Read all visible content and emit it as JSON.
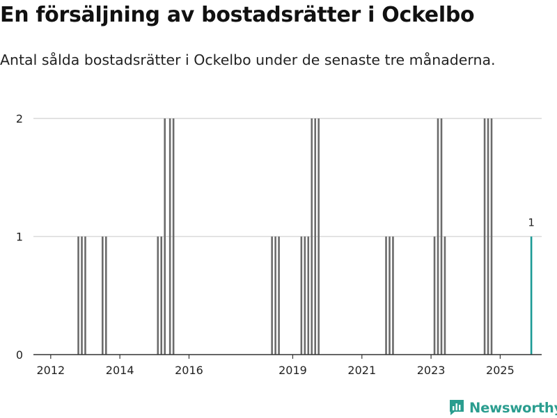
{
  "title": "En försäljning av bostadsrätter i Ockelbo",
  "subtitle": "Antal sålda bostadsrätter i Ockelbo under de senaste tre månaderna.",
  "brand": {
    "name": "Newsworthy",
    "color": "#2a9d8f"
  },
  "colors": {
    "bar": "#6b6b6b",
    "highlight": "#1a9a95",
    "grid": "#d9d9d9",
    "axis": "#333333"
  },
  "chart_data": {
    "type": "bar",
    "ylim": [
      0,
      2
    ],
    "yticks": [
      0,
      1,
      2
    ],
    "xlim": [
      2011.5,
      2026.2
    ],
    "xticks": [
      2012,
      2014,
      2016,
      2019,
      2021,
      2023,
      2025
    ],
    "grid": true,
    "series": [
      {
        "points": [
          {
            "x": 2012.8,
            "y": 1
          },
          {
            "x": 2012.9,
            "y": 1
          },
          {
            "x": 2013.0,
            "y": 1
          },
          {
            "x": 2013.5,
            "y": 1
          },
          {
            "x": 2013.6,
            "y": 1
          },
          {
            "x": 2015.1,
            "y": 1
          },
          {
            "x": 2015.2,
            "y": 1
          },
          {
            "x": 2015.3,
            "y": 2
          },
          {
            "x": 2015.45,
            "y": 2
          },
          {
            "x": 2015.55,
            "y": 2
          },
          {
            "x": 2018.4,
            "y": 1
          },
          {
            "x": 2018.5,
            "y": 1
          },
          {
            "x": 2018.6,
            "y": 1
          },
          {
            "x": 2019.25,
            "y": 1
          },
          {
            "x": 2019.35,
            "y": 1
          },
          {
            "x": 2019.45,
            "y": 1
          },
          {
            "x": 2019.55,
            "y": 2
          },
          {
            "x": 2019.65,
            "y": 2
          },
          {
            "x": 2019.75,
            "y": 2
          },
          {
            "x": 2021.7,
            "y": 1
          },
          {
            "x": 2021.8,
            "y": 1
          },
          {
            "x": 2021.9,
            "y": 1
          },
          {
            "x": 2023.1,
            "y": 1
          },
          {
            "x": 2023.2,
            "y": 2
          },
          {
            "x": 2023.3,
            "y": 2
          },
          {
            "x": 2023.4,
            "y": 1
          },
          {
            "x": 2024.55,
            "y": 2
          },
          {
            "x": 2024.65,
            "y": 2
          },
          {
            "x": 2024.75,
            "y": 2
          }
        ]
      }
    ],
    "highlight": {
      "x": 2025.9,
      "y": 1,
      "label": "1"
    }
  }
}
